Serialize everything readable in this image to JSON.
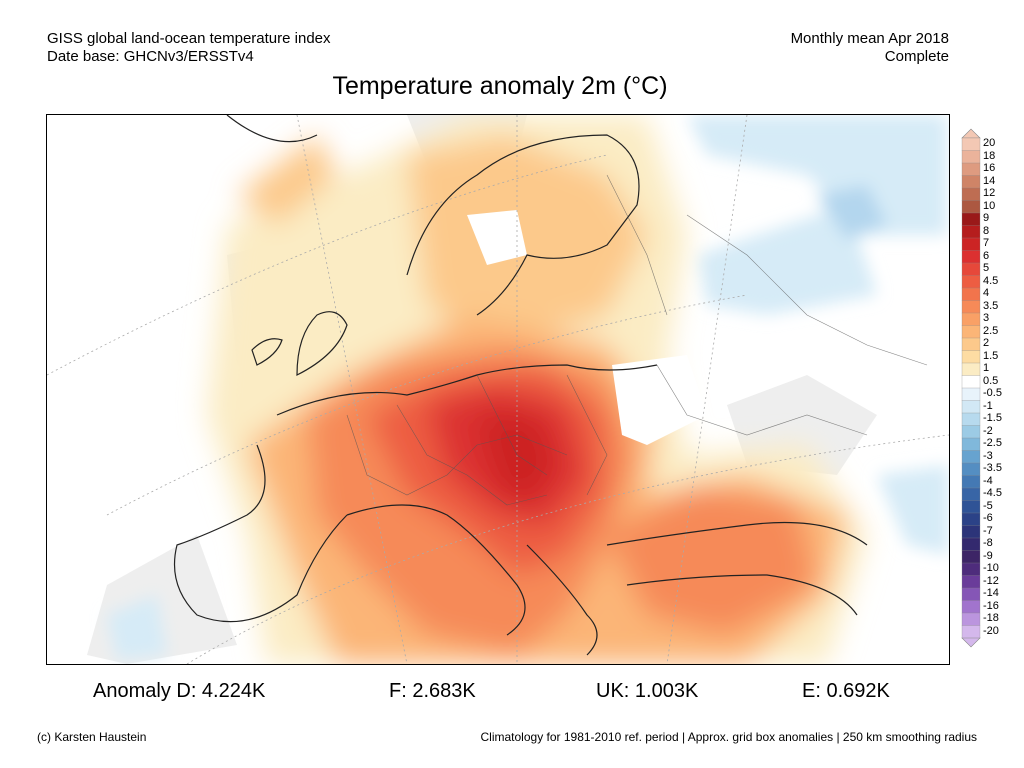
{
  "header": {
    "line1_left": "GISS global land-ocean temperature index",
    "line2_left": "Date base: GHCNv3/ERSSTv4",
    "line1_right": "Monthly mean Apr 2018",
    "line2_right": "Complete"
  },
  "title": "Temperature anomaly 2m (°C)",
  "colorbar": {
    "labels": [
      "20",
      "18",
      "16",
      "14",
      "12",
      "10",
      "9",
      "8",
      "7",
      "6",
      "5",
      "4.5",
      "4",
      "3.5",
      "3",
      "2.5",
      "2",
      "1.5",
      "1",
      "0.5",
      "-0.5",
      "-1",
      "-1.5",
      "-2",
      "-2.5",
      "-3",
      "-3.5",
      "-4",
      "-4.5",
      "-5",
      "-6",
      "-7",
      "-8",
      "-9",
      "-10",
      "-12",
      "-14",
      "-16",
      "-18",
      "-20"
    ],
    "colors": [
      "#f3c8b4",
      "#ebb39b",
      "#de9b80",
      "#cf8467",
      "#be6d52",
      "#ac5841",
      "#9a1919",
      "#b51d1d",
      "#cc2424",
      "#dc3030",
      "#e6483a",
      "#ed5d42",
      "#f2744c",
      "#f68a58",
      "#f9a066",
      "#fbb577",
      "#fcc98b",
      "#fddca3",
      "#fbecc4",
      "#ffffff",
      "#e8f3fb",
      "#d2e8f5",
      "#b7daee",
      "#9ccbe5",
      "#80b8db",
      "#67a3cf",
      "#548ec2",
      "#4479b4",
      "#3865a6",
      "#2f5396",
      "#2b4287",
      "#2c3479",
      "#33296e",
      "#3d2566",
      "#4e2c7c",
      "#6a3c9a",
      "#8556b6",
      "#a174cd",
      "#bb95de",
      "#d4b8ec"
    ]
  },
  "map_legend_regions": {
    "center_max_label": "9"
  },
  "anomalies": {
    "d": "Anomaly D: 4.224K",
    "f": "F: 2.683K",
    "uk": "UK: 1.003K",
    "e": "E: 0.692K"
  },
  "footer": {
    "left": "(c) Karsten Haustein",
    "right": "Climatology for 1981-2010 ref. period | Approx. grid box anomalies | 250 km smoothing radius"
  }
}
